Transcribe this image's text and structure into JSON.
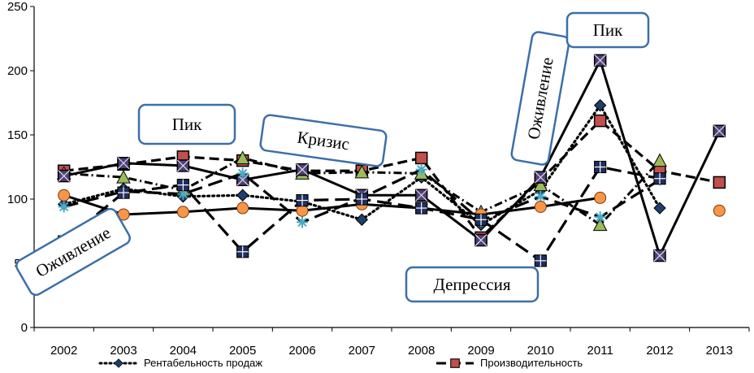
{
  "chart_data": {
    "type": "line",
    "categories": [
      "2002",
      "2003",
      "2004",
      "2005",
      "2006",
      "2007",
      "2008",
      "2009",
      "2010",
      "2011",
      "2012",
      "2013"
    ],
    "ylim": [
      0,
      250
    ],
    "yticks": [
      "0",
      "50",
      "100",
      "150",
      "200",
      "250"
    ],
    "grid": false,
    "legend_position": "bottom",
    "series": [
      {
        "name": "Рентабельность продаж",
        "style": "dotted",
        "marker": "diamond",
        "color": "#1f3f6b",
        "values": [
          96,
          108,
          102,
          103,
          98,
          84,
          117,
          80,
          107,
          173,
          93,
          null
        ]
      },
      {
        "name": "Производительность",
        "style": "dashed",
        "marker": "square",
        "color": "#c0504d",
        "values": [
          122,
          127,
          133,
          130,
          122,
          122,
          132,
          70,
          115,
          161,
          122,
          113
        ]
      },
      {
        "name": "",
        "style": "dash-dot",
        "marker": "triangle",
        "color": "#9bbb59",
        "values": [
          120,
          117,
          107,
          132,
          120,
          121,
          120,
          90,
          111,
          80,
          130,
          null
        ]
      },
      {
        "name": "",
        "style": "solid",
        "marker": "x-square",
        "color": "#4f3f7a",
        "values": [
          118,
          128,
          126,
          115,
          123,
          103,
          103,
          68,
          117,
          208,
          56,
          153
        ]
      },
      {
        "name": "",
        "style": "long-dash",
        "marker": "star",
        "color": "#4bacc6",
        "values": [
          94,
          106,
          104,
          120,
          82,
          101,
          123,
          83,
          102,
          86,
          115,
          null
        ]
      },
      {
        "name": "",
        "style": "solid",
        "marker": "circle",
        "color": "#f79646",
        "values": [
          103,
          88,
          90,
          93,
          91,
          96,
          93,
          88,
          94,
          101,
          null,
          91
        ]
      },
      {
        "name": "",
        "style": "long-dash",
        "marker": "plus-square",
        "color": "#1f2f5f",
        "values": [
          67,
          105,
          111,
          59,
          99,
          100,
          93,
          84,
          52,
          125,
          116,
          null
        ]
      }
    ],
    "annotations": [
      {
        "text": "Оживление",
        "at": "2002",
        "rotation": -30
      },
      {
        "text": "Пик",
        "at": "2004"
      },
      {
        "text": "Кризис",
        "at": "2006-2007",
        "rotation": 8
      },
      {
        "text": "Депрессия",
        "at": "2009"
      },
      {
        "text": "Оживление",
        "at": "2010",
        "rotation": -80
      },
      {
        "text": "Пик",
        "at": "2011"
      }
    ]
  }
}
